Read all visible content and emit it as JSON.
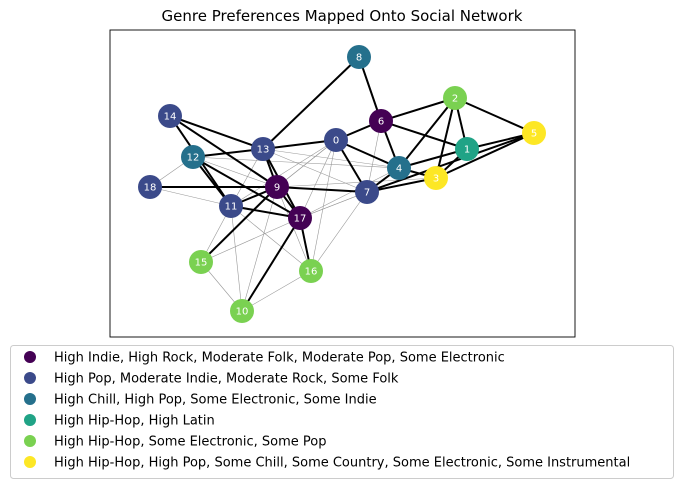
{
  "title": "Genre Preferences Mapped Onto Social Network",
  "groups": [
    {
      "label": "High Indie, High Rock, Moderate Folk, Moderate Pop, Some Electronic",
      "color": "#440154"
    },
    {
      "label": "High Pop, Moderate Indie, Moderate Rock, Some Folk",
      "color": "#3b4a8a"
    },
    {
      "label": "High Chill, High Pop, Some Electronic, Some Indie",
      "color": "#25708c"
    },
    {
      "label": "High Hip-Hop, High Latin",
      "color": "#20a386"
    },
    {
      "label": "High Hip-Hop, Some Electronic, Some Pop",
      "color": "#7ad151"
    },
    {
      "label": "High Hip-Hop, High Pop, Some Chill, Some Country, Some Electronic, Some Instrumental",
      "color": "#fde725"
    }
  ],
  "nodes": [
    {
      "id": "0",
      "group": 1
    },
    {
      "id": "1",
      "group": 3
    },
    {
      "id": "2",
      "group": 4
    },
    {
      "id": "3",
      "group": 5
    },
    {
      "id": "4",
      "group": 2
    },
    {
      "id": "5",
      "group": 5
    },
    {
      "id": "6",
      "group": 0
    },
    {
      "id": "7",
      "group": 1
    },
    {
      "id": "8",
      "group": 2
    },
    {
      "id": "9",
      "group": 0
    },
    {
      "id": "10",
      "group": 4
    },
    {
      "id": "11",
      "group": 1
    },
    {
      "id": "12",
      "group": 2
    },
    {
      "id": "13",
      "group": 1
    },
    {
      "id": "14",
      "group": 1
    },
    {
      "id": "15",
      "group": 4
    },
    {
      "id": "16",
      "group": 4
    },
    {
      "id": "17",
      "group": 0
    },
    {
      "id": "18",
      "group": 1
    }
  ],
  "strong_edges": [
    [
      "8",
      "6"
    ],
    [
      "8",
      "13"
    ],
    [
      "6",
      "0"
    ],
    [
      "6",
      "4"
    ],
    [
      "6",
      "1"
    ],
    [
      "6",
      "2"
    ],
    [
      "2",
      "4"
    ],
    [
      "2",
      "1"
    ],
    [
      "2",
      "3"
    ],
    [
      "2",
      "5"
    ],
    [
      "4",
      "1"
    ],
    [
      "4",
      "3"
    ],
    [
      "4",
      "7"
    ],
    [
      "4",
      "0"
    ],
    [
      "1",
      "3"
    ],
    [
      "1",
      "5"
    ],
    [
      "3",
      "5"
    ],
    [
      "3",
      "7"
    ],
    [
      "7",
      "5"
    ],
    [
      "0",
      "7"
    ],
    [
      "0",
      "13"
    ],
    [
      "14",
      "13"
    ],
    [
      "14",
      "9"
    ],
    [
      "14",
      "11"
    ],
    [
      "12",
      "13"
    ],
    [
      "12",
      "11"
    ],
    [
      "12",
      "17"
    ],
    [
      "13",
      "9"
    ],
    [
      "13",
      "17"
    ],
    [
      "9",
      "18"
    ],
    [
      "9",
      "11"
    ],
    [
      "9",
      "17"
    ],
    [
      "9",
      "15"
    ],
    [
      "9",
      "7"
    ],
    [
      "11",
      "17"
    ],
    [
      "17",
      "16"
    ],
    [
      "17",
      "10"
    ]
  ],
  "weak_edges": [
    [
      "12",
      "0"
    ],
    [
      "12",
      "9"
    ],
    [
      "12",
      "18"
    ],
    [
      "12",
      "4"
    ],
    [
      "13",
      "7"
    ],
    [
      "13",
      "11"
    ],
    [
      "13",
      "4"
    ],
    [
      "0",
      "9"
    ],
    [
      "0",
      "11"
    ],
    [
      "0",
      "17"
    ],
    [
      "0",
      "16"
    ],
    [
      "0",
      "4"
    ],
    [
      "9",
      "7"
    ],
    [
      "9",
      "3"
    ],
    [
      "9",
      "16"
    ],
    [
      "9",
      "10"
    ],
    [
      "9",
      "0"
    ],
    [
      "11",
      "15"
    ],
    [
      "11",
      "10"
    ],
    [
      "11",
      "16"
    ],
    [
      "17",
      "15"
    ],
    [
      "17",
      "7"
    ],
    [
      "7",
      "16"
    ],
    [
      "7",
      "17"
    ],
    [
      "15",
      "10"
    ],
    [
      "16",
      "10"
    ],
    [
      "18",
      "11"
    ],
    [
      "6",
      "7"
    ],
    [
      "4",
      "17"
    ]
  ]
}
